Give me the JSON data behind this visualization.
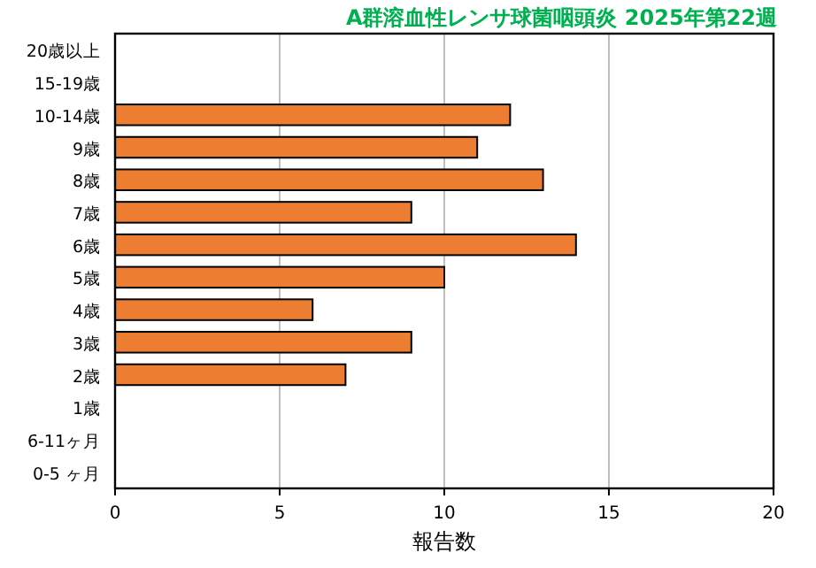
{
  "chart_data": {
    "type": "bar",
    "orientation": "horizontal",
    "title": "A群溶血性レンサ球菌咽頭炎 2025年第22週",
    "xlabel": "報告数",
    "categories": [
      "20歳以上",
      "15-19歳",
      "10-14歳",
      "9歳",
      "8歳",
      "7歳",
      "6歳",
      "5歳",
      "4歳",
      "3歳",
      "2歳",
      "1歳",
      "6-11ヶ月",
      "0-5 ヶ月"
    ],
    "values": [
      0,
      0,
      12,
      11,
      13,
      9,
      14,
      10,
      6,
      9,
      7,
      0,
      0,
      0
    ],
    "color": "#ed7d31",
    "xlim": [
      0,
      20
    ],
    "xticks": [
      0,
      5,
      10,
      15,
      20
    ],
    "grid": "x"
  }
}
